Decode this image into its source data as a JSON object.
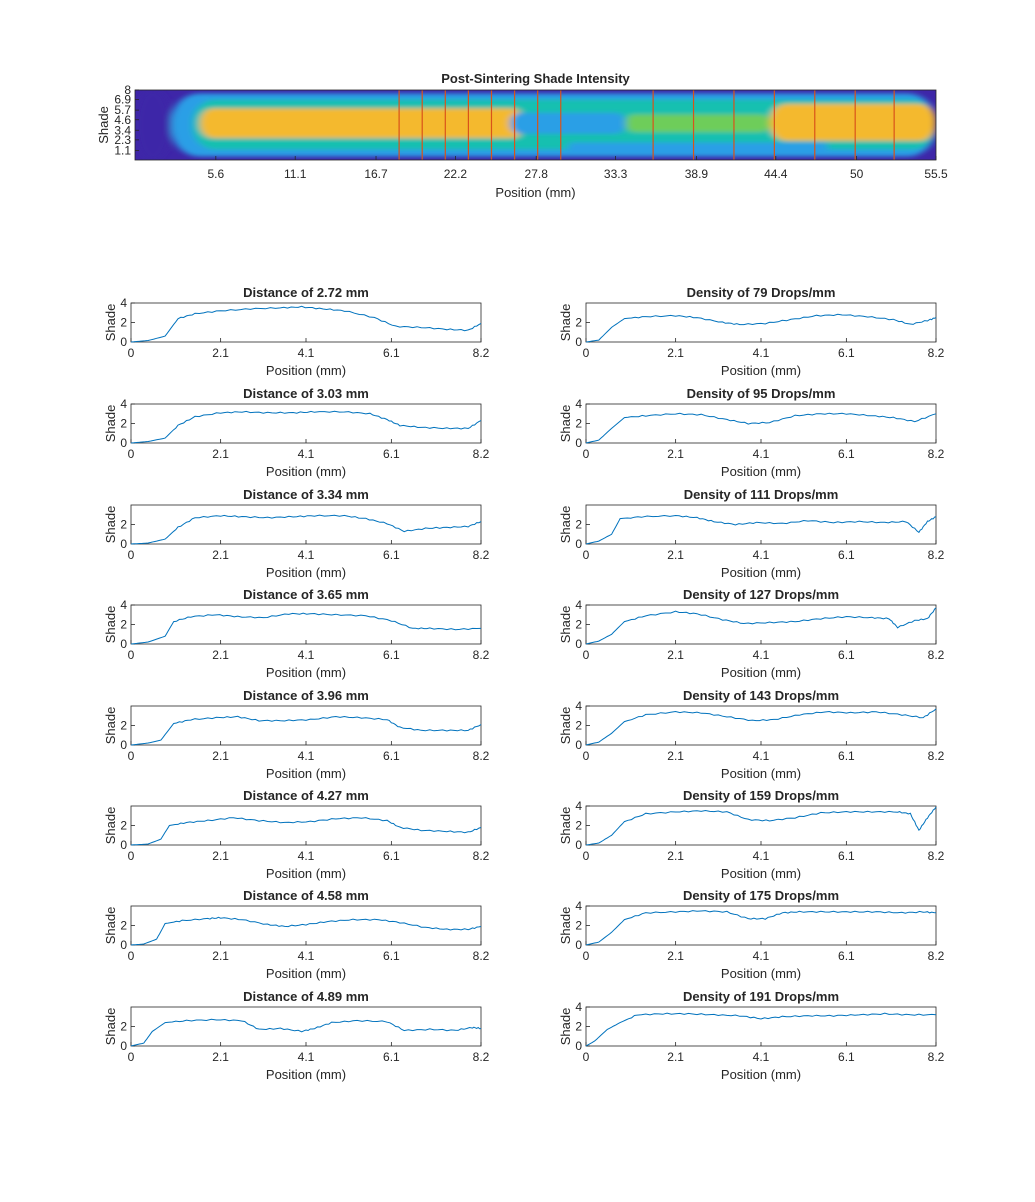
{
  "figure": {
    "background": "#ffffff",
    "line_color": "#0072BD",
    "divider_color": "#D95319"
  },
  "chart_data": [
    {
      "id": "heatmap",
      "type": "heatmap",
      "title": "Post-Sintering Shade Intensity",
      "xlabel": "Position (mm)",
      "ylabel": "Shade",
      "xlim": [
        0,
        55.5
      ],
      "xticks": [
        "5.6",
        "11.1",
        "16.7",
        "22.2",
        "27.8",
        "33.3",
        "38.9",
        "44.4",
        "50",
        "55.5"
      ],
      "yticks": [
        "1.1",
        "2.3",
        "3.4",
        "4.6",
        "5.7",
        "6.9",
        "8"
      ],
      "ylim": [
        0,
        8
      ],
      "colormap": [
        "#3e26a8",
        "#4361f8",
        "#2c9fe6",
        "#17c0b0",
        "#6ecd5a",
        "#d4bd3c",
        "#f4b92f"
      ],
      "dividers_mm": [
        18.3,
        19.9,
        21.5,
        23.1,
        24.7,
        26.3,
        27.9,
        29.5,
        35.9,
        38.7,
        41.5,
        44.3,
        47.1,
        49.9,
        52.6
      ],
      "bands": [
        {
          "x_start": 0,
          "x_end": 2.5,
          "level": 0.03
        },
        {
          "x_start": 2.5,
          "x_end": 55.5,
          "y_low": 0.4,
          "y_high": 7.6,
          "level": 0.25
        },
        {
          "x_start": 4,
          "x_end": 55.5,
          "y_low": 1.2,
          "y_high": 6.9,
          "level": 0.5
        },
        {
          "x_start": 4.5,
          "x_end": 27,
          "y_low": 2.5,
          "y_high": 5.9,
          "level": 0.92
        },
        {
          "x_start": 26,
          "x_end": 34,
          "y_low": 3.0,
          "y_high": 5.4,
          "level": 0.38
        },
        {
          "x_start": 34,
          "x_end": 44,
          "y_low": 3.2,
          "y_high": 5.2,
          "level": 0.62
        },
        {
          "x_start": 44,
          "x_end": 55.5,
          "y_low": 2.2,
          "y_high": 6.4,
          "level": 0.92
        },
        {
          "x_start": 30,
          "x_end": 48,
          "y_low": 1.0,
          "y_high": 2.0,
          "level": 0.3
        }
      ]
    },
    {
      "id": "d272",
      "type": "line",
      "title": "Distance of 2.72 mm",
      "xlabel": "Position (mm)",
      "ylabel": "Shade",
      "xlim": [
        0,
        8.2
      ],
      "xticks": [
        "0",
        "2.1",
        "4.1",
        "6.1",
        "8.2"
      ],
      "ylim": [
        0,
        4
      ],
      "yticks": [
        "0",
        "2",
        "4"
      ],
      "x": [
        0,
        0.4,
        0.8,
        1.1,
        1.5,
        2.1,
        2.8,
        3.5,
        4.0,
        4.5,
        5.0,
        5.7,
        6.2,
        6.8,
        7.4,
        7.9,
        8.2
      ],
      "y": [
        0,
        0.15,
        0.6,
        2.4,
        2.9,
        3.2,
        3.4,
        3.5,
        3.6,
        3.4,
        3.2,
        2.5,
        1.6,
        1.5,
        1.3,
        1.2,
        1.9
      ]
    },
    {
      "id": "d303",
      "type": "line",
      "title": "Distance of 3.03 mm",
      "xlabel": "Position (mm)",
      "ylabel": "Shade",
      "xlim": [
        0,
        8.2
      ],
      "xticks": [
        "0",
        "2.1",
        "4.1",
        "6.1",
        "8.2"
      ],
      "ylim": [
        0,
        4
      ],
      "yticks": [
        "0",
        "2",
        "4"
      ],
      "x": [
        0,
        0.4,
        0.8,
        1.1,
        1.5,
        2.1,
        2.6,
        3.2,
        3.8,
        4.3,
        5.0,
        5.6,
        6.0,
        6.3,
        6.8,
        7.4,
        7.9,
        8.2
      ],
      "y": [
        0,
        0.15,
        0.5,
        1.8,
        2.7,
        3.1,
        3.2,
        3.1,
        3.1,
        3.2,
        3.2,
        3.0,
        2.4,
        1.8,
        1.6,
        1.5,
        1.5,
        2.3
      ]
    },
    {
      "id": "d334",
      "type": "line",
      "title": "Distance of 3.34 mm",
      "xlabel": "Position (mm)",
      "ylabel": "Shade",
      "xlim": [
        0,
        8.2
      ],
      "xticks": [
        "0",
        "2.1",
        "4.1",
        "6.1",
        "8.2"
      ],
      "ylim": [
        0,
        4
      ],
      "yticks": [
        "0",
        "2"
      ],
      "x": [
        0,
        0.4,
        0.8,
        1.1,
        1.5,
        2.1,
        2.6,
        3.2,
        3.8,
        4.3,
        5.0,
        5.5,
        6.0,
        6.4,
        6.9,
        7.4,
        7.9,
        8.2
      ],
      "y": [
        0,
        0.1,
        0.5,
        1.7,
        2.7,
        2.9,
        2.8,
        2.7,
        2.8,
        2.9,
        2.9,
        2.6,
        2.1,
        1.3,
        1.6,
        1.7,
        1.8,
        2.3
      ]
    },
    {
      "id": "d365",
      "type": "line",
      "title": "Distance of 3.65 mm",
      "xlabel": "Position (mm)",
      "ylabel": "Shade",
      "xlim": [
        0,
        8.2
      ],
      "xticks": [
        "0",
        "2.1",
        "4.1",
        "6.1",
        "8.2"
      ],
      "ylim": [
        0,
        4
      ],
      "yticks": [
        "0",
        "2",
        "4"
      ],
      "x": [
        0,
        0.4,
        0.8,
        1.0,
        1.4,
        2.0,
        2.5,
        3.1,
        3.7,
        4.2,
        4.8,
        5.5,
        6.1,
        6.6,
        7.0,
        7.6,
        8.2
      ],
      "y": [
        0,
        0.2,
        0.8,
        2.3,
        2.8,
        3.0,
        2.8,
        2.7,
        3.1,
        3.1,
        3.0,
        2.9,
        2.4,
        1.6,
        1.6,
        1.5,
        1.6
      ]
    },
    {
      "id": "d396",
      "type": "line",
      "title": "Distance of 3.96 mm",
      "xlabel": "Position (mm)",
      "ylabel": "Shade",
      "xlim": [
        0,
        8.2
      ],
      "xticks": [
        "0",
        "2.1",
        "4.1",
        "6.1",
        "8.2"
      ],
      "ylim": [
        0,
        4
      ],
      "yticks": [
        "0",
        "2"
      ],
      "x": [
        0,
        0.4,
        0.7,
        1.0,
        1.4,
        2.0,
        2.5,
        3.0,
        3.6,
        4.2,
        4.8,
        5.4,
        6.0,
        6.3,
        6.8,
        7.4,
        7.9,
        8.2
      ],
      "y": [
        0,
        0.2,
        0.5,
        2.2,
        2.6,
        2.8,
        2.9,
        2.5,
        2.5,
        2.6,
        2.9,
        2.8,
        2.6,
        1.8,
        1.5,
        1.5,
        1.5,
        2.1
      ]
    },
    {
      "id": "d427",
      "type": "line",
      "title": "Distance of 4.27 mm",
      "xlabel": "Position (mm)",
      "ylabel": "Shade",
      "xlim": [
        0,
        8.2
      ],
      "xticks": [
        "0",
        "2.1",
        "4.1",
        "6.1",
        "8.2"
      ],
      "ylim": [
        0,
        4
      ],
      "yticks": [
        "0",
        "2"
      ],
      "x": [
        0,
        0.4,
        0.7,
        0.9,
        1.3,
        1.8,
        2.4,
        3.0,
        3.6,
        4.2,
        4.8,
        5.4,
        6.0,
        6.3,
        6.8,
        7.4,
        7.9,
        8.2
      ],
      "y": [
        0,
        0.1,
        0.6,
        2.0,
        2.3,
        2.5,
        2.8,
        2.5,
        2.3,
        2.4,
        2.7,
        2.8,
        2.5,
        1.8,
        1.5,
        1.4,
        1.3,
        1.8
      ]
    },
    {
      "id": "d458",
      "type": "line",
      "title": "Distance of 4.58 mm",
      "xlabel": "Position (mm)",
      "ylabel": "Shade",
      "xlim": [
        0,
        8.2
      ],
      "xticks": [
        "0",
        "2.1",
        "4.1",
        "6.1",
        "8.2"
      ],
      "ylim": [
        0,
        4
      ],
      "yticks": [
        "0",
        "2"
      ],
      "x": [
        0,
        0.3,
        0.6,
        0.8,
        1.2,
        1.8,
        2.1,
        2.6,
        3.2,
        3.6,
        4.1,
        4.6,
        5.2,
        5.8,
        6.3,
        6.9,
        7.4,
        7.9,
        8.2
      ],
      "y": [
        0,
        0.1,
        0.6,
        2.2,
        2.5,
        2.7,
        2.8,
        2.6,
        2.1,
        1.9,
        2.1,
        2.4,
        2.6,
        2.6,
        2.3,
        1.8,
        1.6,
        1.6,
        1.9
      ]
    },
    {
      "id": "d489",
      "type": "line",
      "title": "Distance of 4.89 mm",
      "xlabel": "Position (mm)",
      "ylabel": "Shade",
      "xlim": [
        0,
        8.2
      ],
      "xticks": [
        "0",
        "2.1",
        "4.1",
        "6.1",
        "8.2"
      ],
      "ylim": [
        0,
        4
      ],
      "yticks": [
        "0",
        "2"
      ],
      "x": [
        0,
        0.3,
        0.5,
        0.8,
        1.3,
        2.0,
        2.6,
        3.0,
        3.5,
        4.0,
        4.3,
        4.7,
        5.3,
        6.0,
        6.4,
        7.0,
        7.6,
        8.0,
        8.2
      ],
      "y": [
        0,
        0.3,
        1.5,
        2.4,
        2.6,
        2.7,
        2.6,
        1.7,
        1.8,
        1.5,
        1.8,
        2.4,
        2.6,
        2.5,
        1.6,
        1.7,
        1.6,
        1.9,
        1.8
      ]
    },
    {
      "id": "r79",
      "type": "line",
      "title": "Density of 79 Drops/mm",
      "xlabel": "Position (mm)",
      "ylabel": "Shade",
      "xlim": [
        0,
        8.2
      ],
      "xticks": [
        "0",
        "2.1",
        "4.1",
        "6.1",
        "8.2"
      ],
      "ylim": [
        0,
        4
      ],
      "yticks": [
        "0",
        "2"
      ],
      "x": [
        0,
        0.3,
        0.6,
        0.9,
        1.4,
        2.1,
        2.6,
        3.2,
        3.6,
        4.2,
        4.8,
        5.4,
        6.0,
        6.6,
        7.2,
        7.6,
        8.0,
        8.2
      ],
      "y": [
        0,
        0.2,
        1.5,
        2.4,
        2.6,
        2.7,
        2.5,
        2.0,
        1.8,
        1.9,
        2.3,
        2.7,
        2.8,
        2.6,
        2.3,
        1.8,
        2.2,
        2.5
      ]
    },
    {
      "id": "r95",
      "type": "line",
      "title": "Density of 95 Drops/mm",
      "xlabel": "Position (mm)",
      "ylabel": "Shade",
      "xlim": [
        0,
        8.2
      ],
      "xticks": [
        "0",
        "2.1",
        "4.1",
        "6.1",
        "8.2"
      ],
      "ylim": [
        0,
        4
      ],
      "yticks": [
        "0",
        "2",
        "4"
      ],
      "x": [
        0,
        0.3,
        0.6,
        0.9,
        1.4,
        2.1,
        2.7,
        3.3,
        3.8,
        4.3,
        4.9,
        5.5,
        6.1,
        6.7,
        7.2,
        7.7,
        8.2
      ],
      "y": [
        0,
        0.3,
        1.5,
        2.6,
        2.8,
        3.0,
        2.9,
        2.4,
        2.0,
        2.1,
        2.8,
        3.0,
        3.0,
        2.8,
        2.6,
        2.2,
        3.0
      ]
    },
    {
      "id": "r111",
      "type": "line",
      "title": "Density of 111 Drops/mm",
      "xlabel": "Position (mm)",
      "ylabel": "Shade",
      "xlim": [
        0,
        8.2
      ],
      "xticks": [
        "0",
        "2.1",
        "4.1",
        "6.1",
        "8.2"
      ],
      "ylim": [
        0,
        4
      ],
      "yticks": [
        "0",
        "2"
      ],
      "x": [
        0,
        0.3,
        0.6,
        0.8,
        1.3,
        2.1,
        2.6,
        3.0,
        3.5,
        4.0,
        4.6,
        5.2,
        5.8,
        6.4,
        7.0,
        7.5,
        7.8,
        8.0,
        8.2
      ],
      "y": [
        0,
        0.3,
        1.0,
        2.6,
        2.8,
        2.9,
        2.7,
        2.3,
        2.0,
        2.2,
        2.1,
        2.4,
        2.2,
        2.3,
        2.2,
        2.3,
        1.2,
        2.3,
        2.8
      ]
    },
    {
      "id": "r127",
      "type": "line",
      "title": "Density of 127 Drops/mm",
      "xlabel": "Position (mm)",
      "ylabel": "Shade",
      "xlim": [
        0,
        8.2
      ],
      "xticks": [
        "0",
        "2.1",
        "4.1",
        "6.1",
        "8.2"
      ],
      "ylim": [
        0,
        4
      ],
      "yticks": [
        "0",
        "2",
        "4"
      ],
      "x": [
        0,
        0.3,
        0.6,
        0.9,
        1.4,
        2.1,
        2.6,
        3.2,
        3.7,
        4.3,
        4.9,
        5.5,
        6.1,
        6.7,
        7.1,
        7.3,
        7.7,
        8.0,
        8.2
      ],
      "y": [
        0,
        0.3,
        1.0,
        2.3,
        2.9,
        3.3,
        3.1,
        2.5,
        2.1,
        2.2,
        2.3,
        2.6,
        2.8,
        2.7,
        2.6,
        1.7,
        2.4,
        2.6,
        3.7
      ]
    },
    {
      "id": "r143",
      "type": "line",
      "title": "Density of 143 Drops/mm",
      "xlabel": "Position (mm)",
      "ylabel": "Shade",
      "xlim": [
        0,
        8.2
      ],
      "xticks": [
        "0",
        "2.1",
        "4.1",
        "6.1",
        "8.2"
      ],
      "ylim": [
        0,
        4
      ],
      "yticks": [
        "0",
        "2",
        "4"
      ],
      "x": [
        0,
        0.3,
        0.6,
        0.9,
        1.4,
        2.1,
        2.7,
        3.3,
        3.9,
        4.4,
        5.0,
        5.6,
        6.2,
        6.8,
        7.4,
        7.9,
        8.2
      ],
      "y": [
        0,
        0.3,
        1.2,
        2.4,
        3.1,
        3.4,
        3.3,
        2.9,
        2.5,
        2.6,
        3.1,
        3.4,
        3.3,
        3.4,
        3.1,
        2.8,
        3.7
      ]
    },
    {
      "id": "r159",
      "type": "line",
      "title": "Density of 159 Drops/mm",
      "xlabel": "Position (mm)",
      "ylabel": "Shade",
      "xlim": [
        0,
        8.2
      ],
      "xticks": [
        "0",
        "2.1",
        "4.1",
        "6.1",
        "8.2"
      ],
      "ylim": [
        0,
        4
      ],
      "yticks": [
        "0",
        "2",
        "4"
      ],
      "x": [
        0,
        0.3,
        0.6,
        0.9,
        1.4,
        2.1,
        2.7,
        3.3,
        3.8,
        4.3,
        4.9,
        5.5,
        6.1,
        6.7,
        7.3,
        7.6,
        7.8,
        8.0,
        8.2
      ],
      "y": [
        0,
        0.2,
        1.0,
        2.4,
        3.2,
        3.4,
        3.5,
        3.4,
        2.6,
        2.5,
        2.8,
        3.3,
        3.4,
        3.4,
        3.4,
        3.2,
        1.5,
        2.8,
        3.9
      ]
    },
    {
      "id": "r175",
      "type": "line",
      "title": "Density of 175 Drops/mm",
      "xlabel": "Position (mm)",
      "ylabel": "Shade",
      "xlim": [
        0,
        8.2
      ],
      "xticks": [
        "0",
        "2.1",
        "4.1",
        "6.1",
        "8.2"
      ],
      "ylim": [
        0,
        4
      ],
      "yticks": [
        "0",
        "2",
        "4"
      ],
      "x": [
        0,
        0.3,
        0.6,
        0.9,
        1.4,
        2.1,
        2.7,
        3.3,
        3.8,
        4.2,
        4.6,
        5.0,
        5.6,
        6.2,
        6.8,
        7.4,
        7.9,
        8.2
      ],
      "y": [
        0,
        0.3,
        1.3,
        2.6,
        3.3,
        3.4,
        3.5,
        3.4,
        2.7,
        2.7,
        3.3,
        3.4,
        3.4,
        3.4,
        3.4,
        3.3,
        3.4,
        3.3
      ]
    },
    {
      "id": "r191",
      "type": "line",
      "title": "Density of 191 Drops/mm",
      "xlabel": "Position (mm)",
      "ylabel": "Shade",
      "xlim": [
        0,
        8.2
      ],
      "xticks": [
        "0",
        "2.1",
        "4.1",
        "6.1",
        "8.2"
      ],
      "ylim": [
        0,
        4
      ],
      "yticks": [
        "0",
        "2",
        "4"
      ],
      "x": [
        0,
        0.2,
        0.5,
        0.8,
        1.2,
        1.8,
        2.4,
        3.0,
        3.6,
        4.1,
        4.6,
        5.2,
        5.8,
        6.4,
        7.0,
        7.6,
        8.2
      ],
      "y": [
        0,
        0.5,
        1.7,
        2.4,
        3.2,
        3.3,
        3.3,
        3.2,
        3.1,
        2.8,
        3.0,
        3.1,
        3.1,
        3.2,
        3.3,
        3.2,
        3.2
      ]
    }
  ]
}
